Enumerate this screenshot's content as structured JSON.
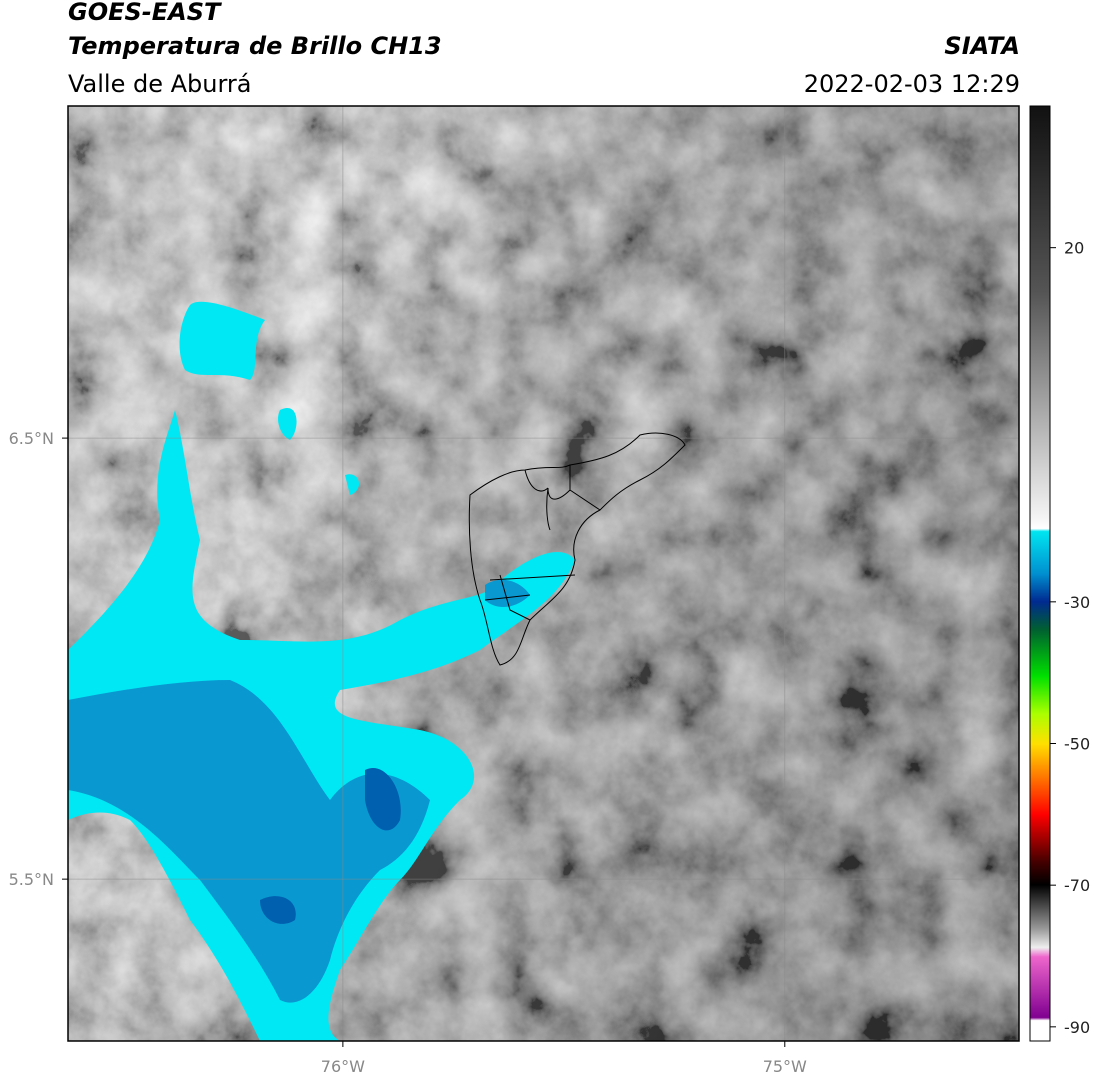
{
  "header": {
    "title": "GOES-EAST",
    "subtitle": "Temperatura de Brillo CH13",
    "region": "Valle de Aburrá",
    "source": "SIATA",
    "datetime": "2022-02-03 12:29"
  },
  "map": {
    "xlim": [
      -76.622,
      -74.47
    ],
    "ylim": [
      5.133,
      7.253
    ],
    "xticks": [
      {
        "value": -76,
        "label": "76°W"
      },
      {
        "value": -75,
        "label": "75°W"
      }
    ],
    "yticks": [
      {
        "value": 6.5,
        "label": "6.5°N"
      },
      {
        "value": 5.5,
        "label": "5.5°N"
      }
    ],
    "grid": true
  },
  "colorbar": {
    "lim": [
      -92,
      40
    ],
    "ticks": [
      20,
      -30,
      -50,
      -70,
      -90
    ]
  }
}
